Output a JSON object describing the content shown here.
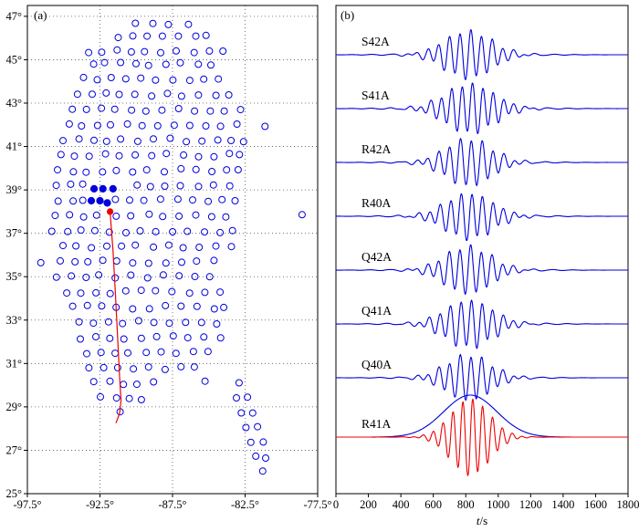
{
  "style": {
    "blue": "#0000DD",
    "red": "#EE0000",
    "grid": "#555555",
    "frame": "#000000"
  },
  "chart_data": [
    {
      "type": "scatter",
      "panel_label": "(a)",
      "xlim": [
        -97.5,
        -77.5
      ],
      "ylim": [
        25,
        47.5
      ],
      "xticks": [
        -97.5,
        -92.5,
        -87.5,
        -82.5,
        -77.5
      ],
      "xtick_labels": [
        "-97.5°",
        "-92.5°",
        "-87.5°",
        "-82.5°",
        "-77.5°"
      ],
      "yticks": [
        25,
        27,
        29,
        31,
        33,
        35,
        37,
        39,
        41,
        43,
        45,
        47
      ],
      "ytick_labels": [
        "25°",
        "27°",
        "29°",
        "31°",
        "33°",
        "35°",
        "37°",
        "39°",
        "41°",
        "43°",
        "45°",
        "47°"
      ],
      "stations_open": [
        [
          -90.0,
          46.6
        ],
        [
          -88.9,
          46.6
        ],
        [
          -87.8,
          46.6
        ],
        [
          -86.4,
          46.6
        ],
        [
          -91.2,
          46.1
        ],
        [
          -90.3,
          46.1
        ],
        [
          -89.3,
          46.1
        ],
        [
          -88.2,
          46.1
        ],
        [
          -87.1,
          46.1
        ],
        [
          -85.9,
          46.1
        ],
        [
          -85.1,
          46.1
        ],
        [
          -93.3,
          45.4
        ],
        [
          -92.4,
          45.4
        ],
        [
          -91.3,
          45.4
        ],
        [
          -90.4,
          45.4
        ],
        [
          -89.4,
          45.4
        ],
        [
          -88.3,
          45.4
        ],
        [
          -87.2,
          45.4
        ],
        [
          -86.1,
          45.4
        ],
        [
          -85.0,
          45.4
        ],
        [
          -84.1,
          45.4
        ],
        [
          -93.0,
          44.8
        ],
        [
          -92.1,
          44.8
        ],
        [
          -91.1,
          44.8
        ],
        [
          -90.1,
          44.8
        ],
        [
          -89.1,
          44.8
        ],
        [
          -88.0,
          44.8
        ],
        [
          -86.9,
          44.8
        ],
        [
          -85.8,
          44.8
        ],
        [
          -84.8,
          44.8
        ],
        [
          -93.6,
          44.1
        ],
        [
          -92.7,
          44.1
        ],
        [
          -91.7,
          44.1
        ],
        [
          -90.7,
          44.1
        ],
        [
          -89.7,
          44.1
        ],
        [
          -88.6,
          44.1
        ],
        [
          -87.5,
          44.1
        ],
        [
          -86.4,
          44.1
        ],
        [
          -85.3,
          44.1
        ],
        [
          -84.3,
          44.1
        ],
        [
          -94.1,
          43.4
        ],
        [
          -93.1,
          43.4
        ],
        [
          -92.1,
          43.4
        ],
        [
          -91.1,
          43.4
        ],
        [
          -90.1,
          43.4
        ],
        [
          -89.0,
          43.4
        ],
        [
          -87.9,
          43.4
        ],
        [
          -86.8,
          43.4
        ],
        [
          -85.7,
          43.4
        ],
        [
          -84.6,
          43.4
        ],
        [
          -83.7,
          43.4
        ],
        [
          -94.4,
          42.7
        ],
        [
          -93.4,
          42.7
        ],
        [
          -92.4,
          42.7
        ],
        [
          -91.4,
          42.7
        ],
        [
          -90.4,
          42.7
        ],
        [
          -89.3,
          42.7
        ],
        [
          -88.2,
          42.7
        ],
        [
          -87.1,
          42.7
        ],
        [
          -86.0,
          42.7
        ],
        [
          -84.9,
          42.7
        ],
        [
          -83.9,
          42.7
        ],
        [
          -82.9,
          42.7
        ],
        [
          -94.7,
          42.0
        ],
        [
          -93.7,
          42.0
        ],
        [
          -92.7,
          42.0
        ],
        [
          -91.7,
          42.0
        ],
        [
          -90.7,
          42.0
        ],
        [
          -89.6,
          42.0
        ],
        [
          -88.5,
          42.0
        ],
        [
          -87.4,
          42.0
        ],
        [
          -86.3,
          42.0
        ],
        [
          -85.2,
          42.0
        ],
        [
          -84.1,
          42.0
        ],
        [
          -83.1,
          42.0
        ],
        [
          -81.1,
          42.0
        ],
        [
          -95.0,
          41.3
        ],
        [
          -94.0,
          41.3
        ],
        [
          -93.0,
          41.3
        ],
        [
          -92.0,
          41.3
        ],
        [
          -91.0,
          41.3
        ],
        [
          -89.9,
          41.3
        ],
        [
          -88.8,
          41.3
        ],
        [
          -87.7,
          41.3
        ],
        [
          -86.6,
          41.3
        ],
        [
          -85.5,
          41.3
        ],
        [
          -84.4,
          41.3
        ],
        [
          -83.4,
          41.3
        ],
        [
          -82.6,
          41.3
        ],
        [
          -95.2,
          40.6
        ],
        [
          -94.2,
          40.6
        ],
        [
          -93.2,
          40.6
        ],
        [
          -92.2,
          40.6
        ],
        [
          -91.2,
          40.6
        ],
        [
          -90.1,
          40.6
        ],
        [
          -89.0,
          40.6
        ],
        [
          -87.9,
          40.6
        ],
        [
          -86.8,
          40.6
        ],
        [
          -85.7,
          40.6
        ],
        [
          -84.6,
          40.6
        ],
        [
          -83.6,
          40.6
        ],
        [
          -82.8,
          40.6
        ],
        [
          -95.4,
          39.9
        ],
        [
          -94.4,
          39.9
        ],
        [
          -93.4,
          39.9
        ],
        [
          -92.4,
          39.9
        ],
        [
          -91.4,
          39.9
        ],
        [
          -90.3,
          39.9
        ],
        [
          -89.2,
          39.9
        ],
        [
          -88.1,
          39.9
        ],
        [
          -87.0,
          39.9
        ],
        [
          -85.9,
          39.9
        ],
        [
          -84.8,
          39.9
        ],
        [
          -83.8,
          39.9
        ],
        [
          -83.0,
          39.9
        ],
        [
          -95.6,
          39.2
        ],
        [
          -94.6,
          39.2
        ],
        [
          -93.6,
          39.2
        ],
        [
          -90.0,
          39.2
        ],
        [
          -89.1,
          39.2
        ],
        [
          -88.0,
          39.2
        ],
        [
          -86.9,
          39.2
        ],
        [
          -85.8,
          39.2
        ],
        [
          -84.7,
          39.2
        ],
        [
          -83.6,
          39.2
        ],
        [
          -95.4,
          38.5
        ],
        [
          -94.4,
          38.5
        ],
        [
          -93.7,
          38.5
        ],
        [
          -91.4,
          38.5
        ],
        [
          -90.4,
          38.5
        ],
        [
          -89.4,
          38.5
        ],
        [
          -88.3,
          38.5
        ],
        [
          -87.2,
          38.5
        ],
        [
          -86.1,
          38.5
        ],
        [
          -85.0,
          38.5
        ],
        [
          -84.0,
          38.5
        ],
        [
          -83.1,
          38.5
        ],
        [
          -95.6,
          37.8
        ],
        [
          -94.6,
          37.8
        ],
        [
          -93.6,
          37.8
        ],
        [
          -92.7,
          37.8
        ],
        [
          -91.3,
          37.8
        ],
        [
          -90.3,
          37.8
        ],
        [
          -89.2,
          37.8
        ],
        [
          -88.1,
          37.8
        ],
        [
          -87.0,
          37.8
        ],
        [
          -85.9,
          37.8
        ],
        [
          -84.8,
          37.8
        ],
        [
          -83.8,
          37.8
        ],
        [
          -78.5,
          37.8
        ],
        [
          -95.8,
          37.1
        ],
        [
          -94.8,
          37.1
        ],
        [
          -93.8,
          37.1
        ],
        [
          -92.8,
          37.1
        ],
        [
          -91.8,
          37.1
        ],
        [
          -90.8,
          37.1
        ],
        [
          -89.7,
          37.1
        ],
        [
          -88.6,
          37.1
        ],
        [
          -87.5,
          37.1
        ],
        [
          -86.4,
          37.1
        ],
        [
          -85.3,
          37.1
        ],
        [
          -84.2,
          37.1
        ],
        [
          -83.3,
          37.1
        ],
        [
          -95.1,
          36.4
        ],
        [
          -94.1,
          36.4
        ],
        [
          -93.1,
          36.4
        ],
        [
          -92.1,
          36.4
        ],
        [
          -91.1,
          36.4
        ],
        [
          -90.0,
          36.4
        ],
        [
          -88.9,
          36.4
        ],
        [
          -87.8,
          36.4
        ],
        [
          -86.7,
          36.4
        ],
        [
          -85.6,
          36.4
        ],
        [
          -84.5,
          36.4
        ],
        [
          -83.5,
          36.4
        ],
        [
          -96.5,
          35.7
        ],
        [
          -95.3,
          35.7
        ],
        [
          -94.3,
          35.7
        ],
        [
          -93.3,
          35.7
        ],
        [
          -92.3,
          35.7
        ],
        [
          -91.3,
          35.7
        ],
        [
          -90.2,
          35.7
        ],
        [
          -89.1,
          35.7
        ],
        [
          -88.0,
          35.7
        ],
        [
          -86.9,
          35.7
        ],
        [
          -85.8,
          35.7
        ],
        [
          -84.7,
          35.7
        ],
        [
          -95.5,
          35.0
        ],
        [
          -94.5,
          35.0
        ],
        [
          -93.5,
          35.0
        ],
        [
          -92.5,
          35.0
        ],
        [
          -91.5,
          35.0
        ],
        [
          -90.4,
          35.0
        ],
        [
          -89.3,
          35.0
        ],
        [
          -88.2,
          35.0
        ],
        [
          -87.1,
          35.0
        ],
        [
          -86.0,
          35.0
        ],
        [
          -85.0,
          35.0
        ],
        [
          -94.8,
          34.3
        ],
        [
          -93.8,
          34.3
        ],
        [
          -92.8,
          34.3
        ],
        [
          -91.8,
          34.3
        ],
        [
          -90.8,
          34.3
        ],
        [
          -89.7,
          34.3
        ],
        [
          -88.6,
          34.3
        ],
        [
          -87.5,
          34.3
        ],
        [
          -86.4,
          34.3
        ],
        [
          -85.3,
          34.3
        ],
        [
          -84.3,
          34.3
        ],
        [
          -94.3,
          33.6
        ],
        [
          -93.3,
          33.6
        ],
        [
          -92.3,
          33.6
        ],
        [
          -91.3,
          33.6
        ],
        [
          -90.2,
          33.6
        ],
        [
          -89.1,
          33.6
        ],
        [
          -88.0,
          33.6
        ],
        [
          -86.9,
          33.6
        ],
        [
          -85.8,
          33.6
        ],
        [
          -84.7,
          33.6
        ],
        [
          -83.9,
          33.6
        ],
        [
          -94.0,
          32.9
        ],
        [
          -93.0,
          32.9
        ],
        [
          -92.0,
          32.9
        ],
        [
          -91.0,
          32.9
        ],
        [
          -89.9,
          32.9
        ],
        [
          -88.8,
          32.9
        ],
        [
          -87.7,
          32.9
        ],
        [
          -86.6,
          32.9
        ],
        [
          -85.5,
          32.9
        ],
        [
          -84.5,
          32.9
        ],
        [
          -93.8,
          32.2
        ],
        [
          -92.8,
          32.2
        ],
        [
          -91.8,
          32.2
        ],
        [
          -90.8,
          32.2
        ],
        [
          -89.7,
          32.2
        ],
        [
          -88.6,
          32.2
        ],
        [
          -87.5,
          32.2
        ],
        [
          -86.4,
          32.2
        ],
        [
          -85.3,
          32.2
        ],
        [
          -84.2,
          32.2
        ],
        [
          -93.5,
          31.5
        ],
        [
          -92.5,
          31.5
        ],
        [
          -91.5,
          31.5
        ],
        [
          -90.5,
          31.5
        ],
        [
          -89.4,
          31.5
        ],
        [
          -88.3,
          31.5
        ],
        [
          -87.2,
          31.5
        ],
        [
          -86.1,
          31.5
        ],
        [
          -85.0,
          31.5
        ],
        [
          -93.2,
          30.8
        ],
        [
          -92.2,
          30.8
        ],
        [
          -91.2,
          30.8
        ],
        [
          -90.2,
          30.8
        ],
        [
          -89.1,
          30.8
        ],
        [
          -88.0,
          30.8
        ],
        [
          -86.9,
          30.8
        ],
        [
          -85.9,
          30.8
        ],
        [
          -92.9,
          30.1
        ],
        [
          -91.9,
          30.1
        ],
        [
          -90.9,
          30.1
        ],
        [
          -89.9,
          30.1
        ],
        [
          -88.8,
          30.1
        ],
        [
          -85.3,
          30.1
        ],
        [
          -82.9,
          30.1
        ],
        [
          -92.4,
          29.4
        ],
        [
          -91.4,
          29.4
        ],
        [
          -90.5,
          29.4
        ],
        [
          -89.6,
          29.4
        ],
        [
          -83.1,
          29.4
        ],
        [
          -82.3,
          29.4
        ],
        [
          -91.1,
          28.8
        ],
        [
          -82.7,
          28.8
        ],
        [
          -81.9,
          28.8
        ],
        [
          -82.4,
          28.1
        ],
        [
          -81.6,
          28.1
        ],
        [
          -82.1,
          27.4
        ],
        [
          -81.3,
          27.4
        ],
        [
          -81.7,
          26.7
        ],
        [
          -81.0,
          26.7
        ],
        [
          -81.3,
          26.1
        ]
      ],
      "stations_filled": [
        [
          -92.9,
          39.05
        ],
        [
          -92.3,
          39.05
        ],
        [
          -91.6,
          39.05
        ],
        [
          -93.1,
          38.5
        ],
        [
          -92.5,
          38.5
        ],
        [
          -92.0,
          38.4
        ]
      ],
      "event": [
        -91.8,
        38.0
      ],
      "path": [
        [
          -91.8,
          38.0
        ],
        [
          -91.6,
          36.2
        ],
        [
          -91.45,
          34.4
        ],
        [
          -91.3,
          32.4
        ],
        [
          -91.15,
          30.4
        ],
        [
          -91.05,
          29.3
        ],
        [
          -91.15,
          28.7
        ],
        [
          -91.4,
          28.25
        ]
      ]
    },
    {
      "type": "line",
      "panel_label": "(b)",
      "xlabel_italic": "t",
      "xlabel_rest": "/s",
      "xlim": [
        0,
        1800
      ],
      "xticks": [
        0,
        200,
        400,
        600,
        800,
        1000,
        1200,
        1400,
        1600,
        1800
      ],
      "xtick_labels": [
        "0",
        "200",
        "400",
        "600",
        "800",
        "1000",
        "1200",
        "1400",
        "1600",
        "1800"
      ],
      "traces": [
        {
          "label": "S42A",
          "amp": 26,
          "center": 815,
          "sigma": 205,
          "period": 66
        },
        {
          "label": "S41A",
          "amp": 27,
          "center": 826,
          "sigma": 212,
          "period": 64
        },
        {
          "label": "R42A",
          "amp": 26,
          "center": 818,
          "sigma": 200,
          "period": 67
        },
        {
          "label": "R40A",
          "amp": 25,
          "center": 822,
          "sigma": 206,
          "period": 65
        },
        {
          "label": "Q42A",
          "amp": 26,
          "center": 814,
          "sigma": 200,
          "period": 66
        },
        {
          "label": "Q41A",
          "amp": 26,
          "center": 820,
          "sigma": 206,
          "period": 65
        },
        {
          "label": "Q40A",
          "amp": 25,
          "center": 816,
          "sigma": 193,
          "period": 66
        },
        {
          "label": "R41A",
          "amp": 42,
          "center": 828,
          "sigma": 168,
          "period": 61,
          "color": "red",
          "envelope": {
            "amp": 46,
            "sigma": 232
          }
        }
      ]
    }
  ]
}
